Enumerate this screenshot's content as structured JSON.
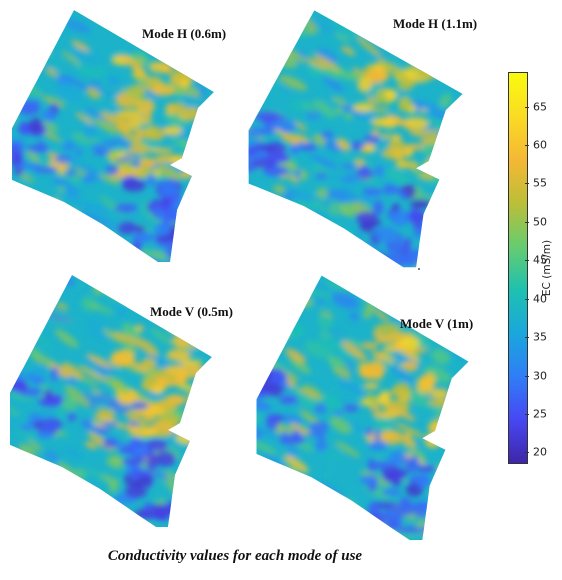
{
  "caption": "Conductivity values for each mode of use",
  "panels": [
    {
      "label": "Mode H (0.6m)",
      "seed": 11
    },
    {
      "label": "Mode H (1.1m)",
      "seed": 23
    },
    {
      "label": "Mode V (0.5m)",
      "seed": 37
    },
    {
      "label": "Mode V (1m)",
      "seed": 51
    }
  ],
  "colorbar": {
    "label": "EC (mS/m)",
    "min": 18.5,
    "max": 69.5,
    "ticks": [
      "20",
      "25",
      "30",
      "35",
      "40",
      "45",
      "50",
      "55",
      "60",
      "65"
    ],
    "colormap": [
      "#3e26a8",
      "#4748f3",
      "#2f7ef7",
      "#1aa7dc",
      "#1ec1b0",
      "#67cc6e",
      "#bcbe39",
      "#f5b834",
      "#fadb24",
      "#f9fb0e"
    ]
  }
}
